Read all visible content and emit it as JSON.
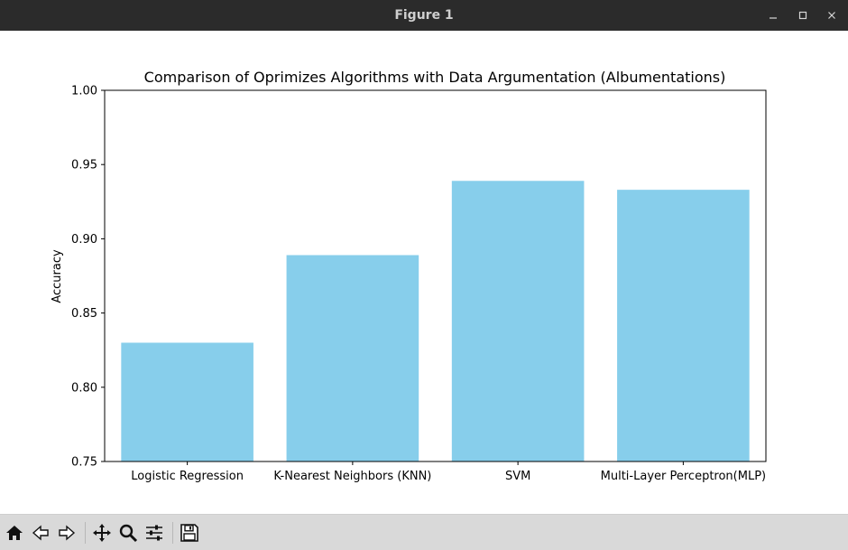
{
  "window": {
    "title": "Figure 1",
    "controls": [
      "minimize-icon",
      "maximize-icon",
      "close-icon"
    ]
  },
  "toolbar": {
    "buttons": [
      {
        "name": "home-button",
        "icon": "home-icon"
      },
      {
        "name": "back-button",
        "icon": "back-arrow-icon"
      },
      {
        "name": "forward-button",
        "icon": "forward-arrow-icon"
      },
      {
        "name": "pan-button",
        "icon": "move-icon"
      },
      {
        "name": "zoom-button",
        "icon": "zoom-icon"
      },
      {
        "name": "configure-subplots-button",
        "icon": "sliders-icon"
      },
      {
        "name": "save-button",
        "icon": "save-icon"
      }
    ]
  },
  "chart_data": {
    "type": "bar",
    "title": "Comparison of Oprimizes Algorithms with Data Argumentation (Albumentations)",
    "xlabel": "",
    "ylabel": "Accuracy",
    "categories": [
      "Logistic Regression",
      "K-Nearest Neighbors (KNN)",
      "SVM",
      "Multi-Layer Perceptron(MLP)"
    ],
    "values": [
      0.83,
      0.889,
      0.939,
      0.933
    ],
    "ylim": [
      0.75,
      1.0
    ],
    "yticks": [
      0.75,
      0.8,
      0.85,
      0.9,
      0.95,
      1.0
    ],
    "ytick_labels": [
      "0.75",
      "0.80",
      "0.85",
      "0.90",
      "0.95",
      "1.00"
    ],
    "bar_color": "#87ceeb",
    "grid": false,
    "legend": "none"
  }
}
